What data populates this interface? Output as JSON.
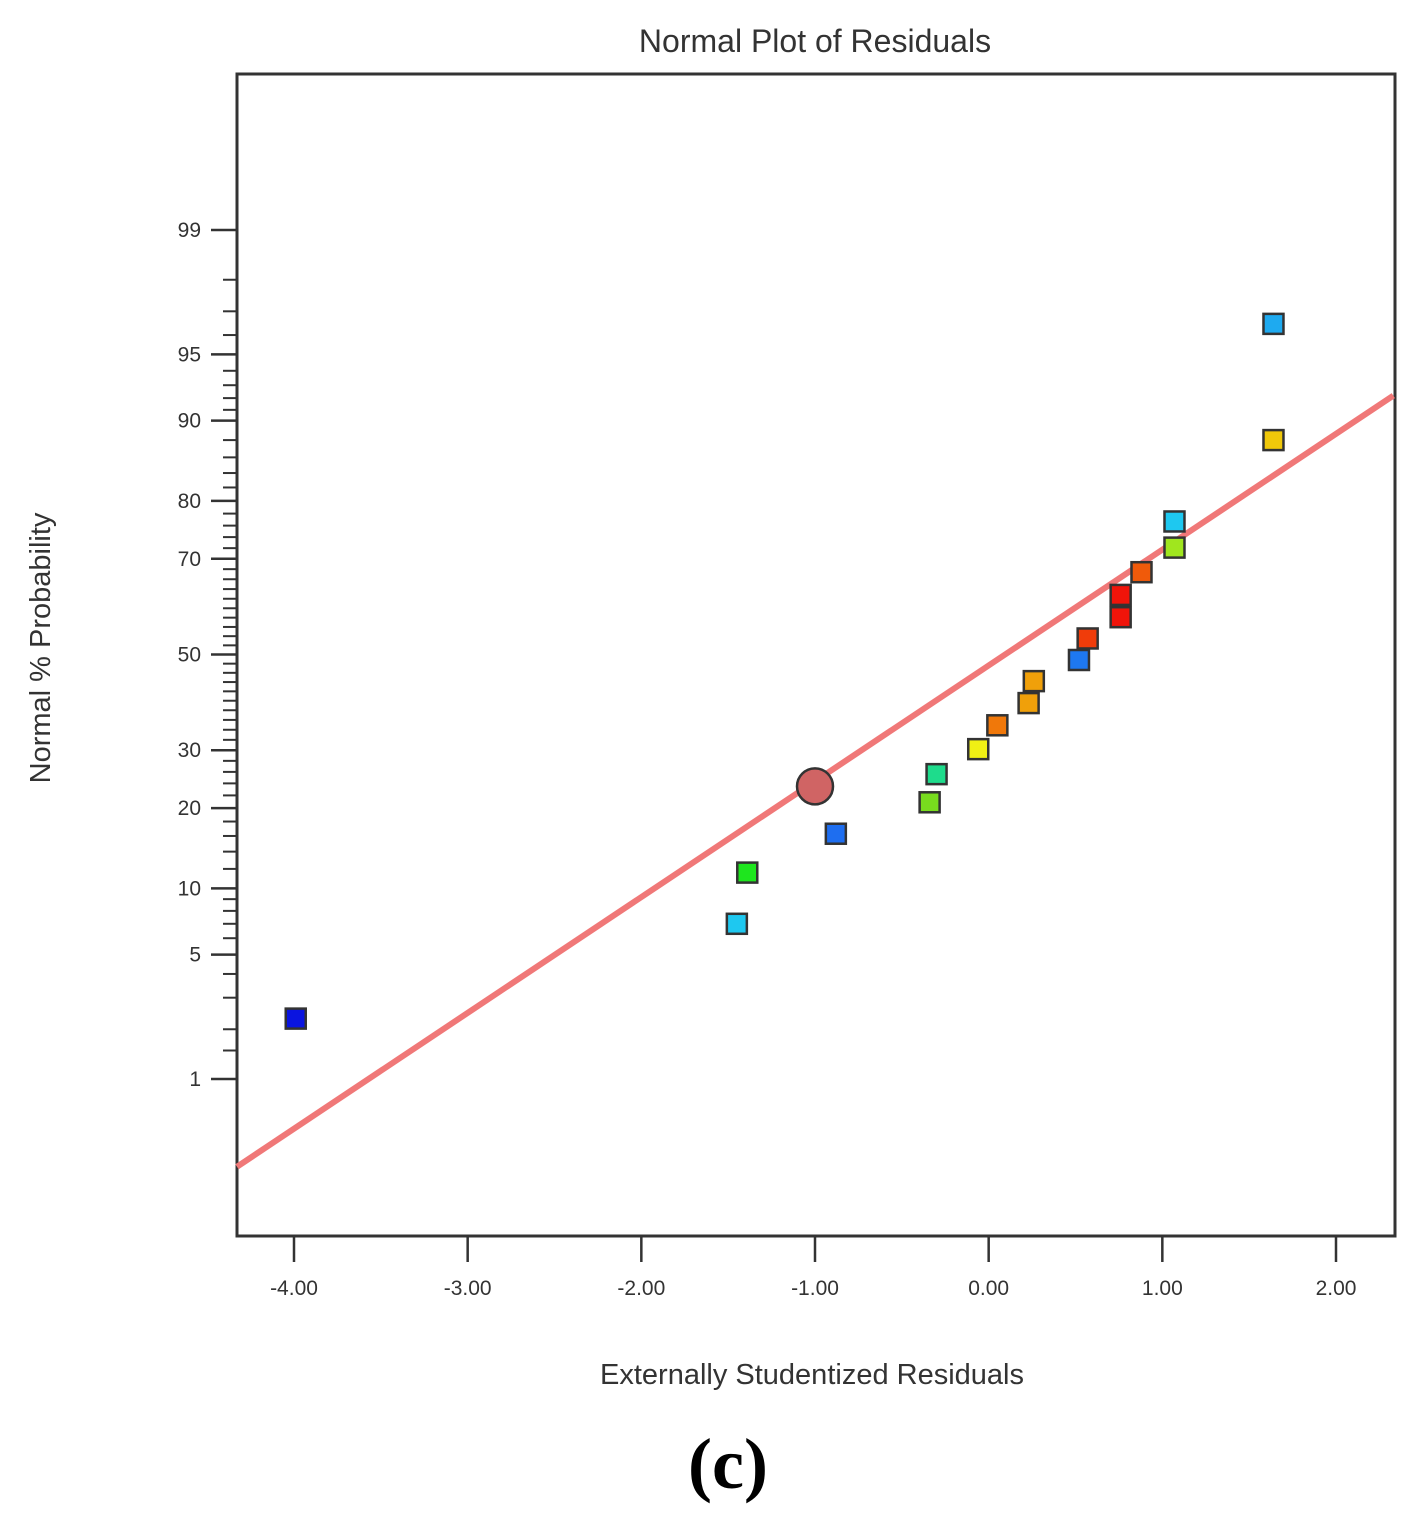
{
  "chart_data": {
    "type": "scatter",
    "title": "Normal Plot of Residuals",
    "xlabel": "Externally Studentized Residuals",
    "ylabel": "Normal % Probability",
    "xlim": [
      -4.33,
      2.33
    ],
    "x_ticks": [
      {
        "value": -4,
        "label": "-4.00"
      },
      {
        "value": -3,
        "label": "-3.00"
      },
      {
        "value": -2,
        "label": "-2.00"
      },
      {
        "value": -1,
        "label": "-1.00"
      },
      {
        "value": 0,
        "label": "0.00"
      },
      {
        "value": 1,
        "label": "1.00"
      },
      {
        "value": 2,
        "label": "2.00"
      }
    ],
    "y_ticks_labeled": [
      {
        "value": 99,
        "label": "99"
      },
      {
        "value": 95,
        "label": "95"
      },
      {
        "value": 90,
        "label": "90"
      },
      {
        "value": 80,
        "label": "80"
      },
      {
        "value": 70,
        "label": "70"
      },
      {
        "value": 50,
        "label": "50"
      },
      {
        "value": 30,
        "label": "30"
      },
      {
        "value": 20,
        "label": "20"
      },
      {
        "value": 10,
        "label": "10"
      },
      {
        "value": 5,
        "label": "5"
      },
      {
        "value": 1,
        "label": "1"
      }
    ],
    "y_minor_ticks": [
      1.5,
      2,
      3,
      4,
      6,
      7,
      8,
      9,
      12,
      14,
      16,
      18,
      22,
      24,
      26,
      28,
      32,
      34,
      36,
      38,
      40,
      42,
      44,
      46,
      48,
      52,
      54,
      56,
      58,
      60,
      62,
      64,
      66,
      68,
      72,
      74,
      76,
      78,
      82,
      84,
      86,
      88,
      91,
      92,
      93,
      94,
      96,
      97,
      98
    ],
    "points": [
      {
        "x": -3.99,
        "p": 2.3,
        "color": "#0a14e0"
      },
      {
        "x": -1.45,
        "p": 7.0,
        "color": "#1ec8f0"
      },
      {
        "x": -1.39,
        "p": 11.6,
        "color": "#1ee61e"
      },
      {
        "x": -0.88,
        "p": 16.3,
        "color": "#1e6ef0"
      },
      {
        "x": -0.34,
        "p": 20.9,
        "color": "#78dc1e"
      },
      {
        "x": -0.3,
        "p": 25.6,
        "color": "#1edc8c"
      },
      {
        "x": -0.06,
        "p": 30.2,
        "color": "#f0f014"
      },
      {
        "x": 0.05,
        "p": 34.9,
        "color": "#f0780a"
      },
      {
        "x": 0.23,
        "p": 39.5,
        "color": "#f0a00a"
      },
      {
        "x": 0.26,
        "p": 44.2,
        "color": "#f0a00a"
      },
      {
        "x": 0.52,
        "p": 48.8,
        "color": "#1e78f0"
      },
      {
        "x": 0.57,
        "p": 53.5,
        "color": "#f03c0a"
      },
      {
        "x": 0.76,
        "p": 58.1,
        "color": "#f0140a"
      },
      {
        "x": 0.76,
        "p": 62.8,
        "color": "#f0140a"
      },
      {
        "x": 0.88,
        "p": 67.4,
        "color": "#f05a0a"
      },
      {
        "x": 1.07,
        "p": 72.1,
        "color": "#a0e61e"
      },
      {
        "x": 1.07,
        "p": 76.7,
        "color": "#1ec8f0"
      },
      {
        "x": 1.64,
        "p": 88.0,
        "color": "#f0c80a"
      },
      {
        "x": 1.64,
        "p": 96.5,
        "color": "#1eaaf0"
      }
    ],
    "highlight_point": {
      "x": -1.0,
      "p": 23.5,
      "color": "#d06464"
    },
    "reference_line": {
      "from": {
        "x": -4.33,
        "p": 0.25
      },
      "to": {
        "x": 2.33,
        "p": 92.2
      },
      "color": "#f07878"
    },
    "grid": false
  },
  "caption": "(c)"
}
